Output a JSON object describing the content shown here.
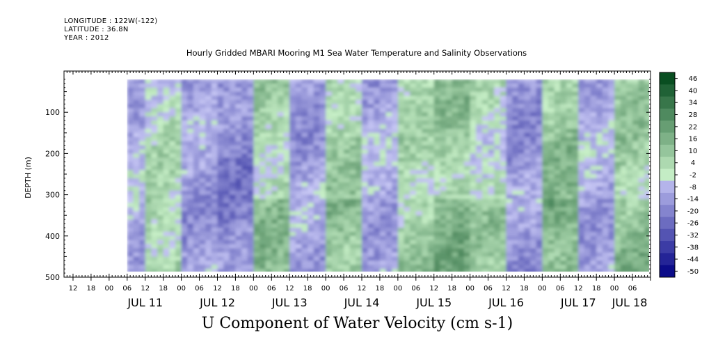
{
  "header": {
    "longitude": "LONGITUDE : 122W(-122)",
    "latitude": "LATITUDE : 36.8N",
    "year": "YEAR : 2012"
  },
  "chart_data": {
    "type": "heatmap",
    "title": "Hourly Gridded MBARI Mooring M1 Sea Water Temperature and Salinity Observations",
    "xlabel": "U Component of Water Velocity (cm s-1)",
    "ylabel": "DEPTH (m)",
    "x_range": [
      "2012-07-10T09:00",
      "2012-07-18T12:00"
    ],
    "x_hour_ticks": [
      "12",
      "18",
      "00",
      "06",
      "12",
      "18",
      "00",
      "06",
      "12",
      "18",
      "00",
      "06",
      "12",
      "18",
      "00",
      "06",
      "12",
      "18",
      "00",
      "06",
      "12",
      "18",
      "00",
      "06",
      "12",
      "18",
      "00",
      "06",
      "12",
      "18",
      "00",
      "06"
    ],
    "x_day_labels": [
      "JUL 11",
      "JUL 12",
      "JUL 13",
      "JUL 14",
      "JUL 15",
      "JUL 16",
      "JUL 17",
      "JUL 18"
    ],
    "y_range": [
      500,
      0
    ],
    "y_ticks": [
      100,
      200,
      300,
      400,
      500
    ],
    "colorbar": {
      "min": -50,
      "max": 50,
      "step": 6,
      "labels": [
        "46",
        "40",
        "34",
        "28",
        "22",
        "16",
        "10",
        "4",
        "-2",
        "-8",
        "-14",
        "-20",
        "-26",
        "-32",
        "-38",
        "-44",
        "-50"
      ]
    },
    "data_extent": {
      "start": "2012-07-11T06:00",
      "end": "2012-07-18T12:00",
      "depth_min": 20,
      "depth_max": 490
    },
    "bands_approx": [
      {
        "start": "2012-07-11T06:00",
        "end": "2012-07-11T12:00",
        "u": -6
      },
      {
        "start": "2012-07-11T12:00",
        "end": "2012-07-12T00:00",
        "u": 4
      },
      {
        "start": "2012-07-12T00:00",
        "end": "2012-07-12T12:00",
        "u": -10
      },
      {
        "start": "2012-07-12T12:00",
        "end": "2012-07-13T00:00",
        "u": -16
      },
      {
        "start": "2012-07-13T00:00",
        "end": "2012-07-13T12:00",
        "u": 8
      },
      {
        "start": "2012-07-13T12:00",
        "end": "2012-07-14T00:00",
        "u": -10
      },
      {
        "start": "2012-07-14T00:00",
        "end": "2012-07-14T12:00",
        "u": 10
      },
      {
        "start": "2012-07-14T12:00",
        "end": "2012-07-15T00:00",
        "u": -8
      },
      {
        "start": "2012-07-15T00:00",
        "end": "2012-07-15T12:00",
        "u": 6
      },
      {
        "start": "2012-07-15T12:00",
        "end": "2012-07-16T00:00",
        "u": 12
      },
      {
        "start": "2012-07-16T00:00",
        "end": "2012-07-16T12:00",
        "u": 4
      },
      {
        "start": "2012-07-16T12:00",
        "end": "2012-07-17T00:00",
        "u": -12
      },
      {
        "start": "2012-07-17T00:00",
        "end": "2012-07-17T12:00",
        "u": 14
      },
      {
        "start": "2012-07-17T12:00",
        "end": "2012-07-18T00:00",
        "u": -8
      },
      {
        "start": "2012-07-18T00:00",
        "end": "2012-07-18T12:00",
        "u": 10
      }
    ]
  }
}
